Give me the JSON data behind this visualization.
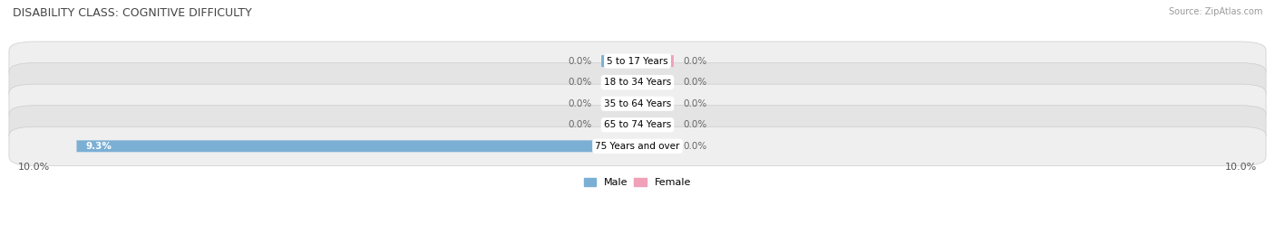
{
  "title": "DISABILITY CLASS: COGNITIVE DIFFICULTY",
  "source_text": "Source: ZipAtlas.com",
  "categories": [
    "5 to 17 Years",
    "18 to 34 Years",
    "35 to 64 Years",
    "65 to 74 Years",
    "75 Years and over"
  ],
  "male_values": [
    0.0,
    0.0,
    0.0,
    0.0,
    9.3
  ],
  "female_values": [
    0.0,
    0.0,
    0.0,
    0.0,
    0.0
  ],
  "max_value": 10.0,
  "male_color": "#7bafd4",
  "female_color": "#f0a0b8",
  "row_bg_color_odd": "#efefef",
  "row_bg_color_even": "#e4e4e4",
  "title_fontsize": 9,
  "label_fontsize": 7.5,
  "tick_fontsize": 8,
  "legend_fontsize": 8,
  "source_fontsize": 7,
  "stub_size": 0.6
}
